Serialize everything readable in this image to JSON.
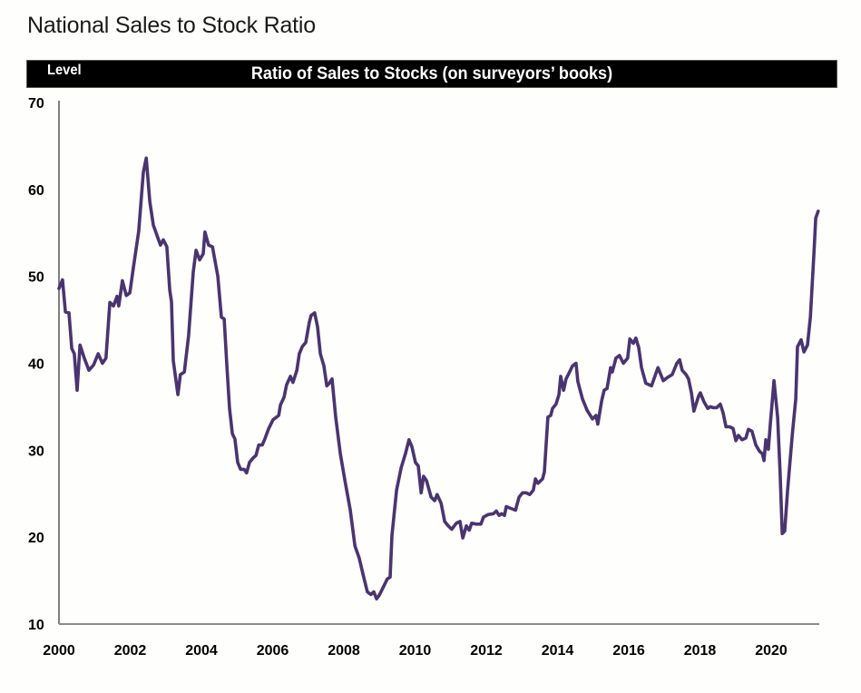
{
  "page": {
    "title": "National Sales to Stock Ratio"
  },
  "header": {
    "left_label": "Level",
    "title": "Ratio of Sales to Stocks (on surveyors’ books)"
  },
  "colors": {
    "line": "#4a3470",
    "axis": "#8c8c8c",
    "header_bg": "#000000",
    "header_text": "#ffffff"
  },
  "chart_data": {
    "type": "line",
    "title": "Ratio of Sales to Stocks (on surveyors’ books)",
    "xlabel": "",
    "ylabel": "Level",
    "xlim": [
      2000,
      2021.35
    ],
    "ylim": [
      10,
      70
    ],
    "grid": false,
    "legend": "none",
    "x_ticks": [
      2000,
      2002,
      2004,
      2006,
      2008,
      2010,
      2012,
      2014,
      2016,
      2018,
      2020
    ],
    "x_tick_labels": [
      "2000",
      "2002",
      "2004",
      "2006",
      "2008",
      "2010",
      "2012",
      "2014",
      "2016",
      "2018",
      "2020"
    ],
    "y_ticks": [
      10,
      20,
      30,
      40,
      50,
      60,
      70
    ],
    "y_tick_labels": [
      "10",
      "20",
      "30",
      "40",
      "50",
      "60",
      "70"
    ],
    "series": [
      {
        "name": "Ratio of Sales to Stocks",
        "points": [
          [
            2000.0,
            48.6
          ],
          [
            2000.1,
            49.6
          ],
          [
            2000.18,
            45.9
          ],
          [
            2000.28,
            45.8
          ],
          [
            2000.36,
            41.7
          ],
          [
            2000.43,
            41.1
          ],
          [
            2000.51,
            36.9
          ],
          [
            2000.59,
            42.1
          ],
          [
            2000.71,
            40.6
          ],
          [
            2000.84,
            39.2
          ],
          [
            2000.97,
            39.8
          ],
          [
            2001.1,
            41.1
          ],
          [
            2001.22,
            40.0
          ],
          [
            2001.32,
            40.6
          ],
          [
            2001.43,
            47.0
          ],
          [
            2001.53,
            46.6
          ],
          [
            2001.63,
            47.7
          ],
          [
            2001.68,
            46.6
          ],
          [
            2001.78,
            49.5
          ],
          [
            2001.89,
            47.8
          ],
          [
            2001.99,
            48.1
          ],
          [
            2002.09,
            51.0
          ],
          [
            2002.24,
            55.2
          ],
          [
            2002.37,
            62.0
          ],
          [
            2002.45,
            63.6
          ],
          [
            2002.55,
            58.6
          ],
          [
            2002.65,
            55.9
          ],
          [
            2002.78,
            54.4
          ],
          [
            2002.85,
            53.6
          ],
          [
            2002.93,
            54.2
          ],
          [
            2003.03,
            53.4
          ],
          [
            2003.11,
            48.4
          ],
          [
            2003.16,
            47.1
          ],
          [
            2003.21,
            40.3
          ],
          [
            2003.34,
            36.4
          ],
          [
            2003.41,
            38.7
          ],
          [
            2003.52,
            39.0
          ],
          [
            2003.64,
            43.2
          ],
          [
            2003.77,
            50.5
          ],
          [
            2003.85,
            53.0
          ],
          [
            2003.95,
            51.9
          ],
          [
            2004.05,
            52.6
          ],
          [
            2004.1,
            55.1
          ],
          [
            2004.2,
            53.6
          ],
          [
            2004.31,
            53.4
          ],
          [
            2004.46,
            50.0
          ],
          [
            2004.56,
            45.3
          ],
          [
            2004.64,
            45.1
          ],
          [
            2004.71,
            40.0
          ],
          [
            2004.79,
            34.8
          ],
          [
            2004.87,
            31.9
          ],
          [
            2004.94,
            31.3
          ],
          [
            2005.02,
            28.6
          ],
          [
            2005.1,
            27.8
          ],
          [
            2005.2,
            27.8
          ],
          [
            2005.27,
            27.4
          ],
          [
            2005.35,
            28.6
          ],
          [
            2005.45,
            29.1
          ],
          [
            2005.53,
            29.4
          ],
          [
            2005.61,
            30.6
          ],
          [
            2005.71,
            30.6
          ],
          [
            2005.78,
            31.3
          ],
          [
            2005.89,
            32.5
          ],
          [
            2006.01,
            33.5
          ],
          [
            2006.17,
            34.0
          ],
          [
            2006.22,
            35.2
          ],
          [
            2006.32,
            36.1
          ],
          [
            2006.39,
            37.5
          ],
          [
            2006.5,
            38.5
          ],
          [
            2006.57,
            37.8
          ],
          [
            2006.68,
            39.2
          ],
          [
            2006.75,
            41.1
          ],
          [
            2006.83,
            41.9
          ],
          [
            2006.93,
            42.4
          ],
          [
            2007.03,
            44.7
          ],
          [
            2007.08,
            45.5
          ],
          [
            2007.18,
            45.8
          ],
          [
            2007.26,
            44.2
          ],
          [
            2007.34,
            41.1
          ],
          [
            2007.44,
            39.7
          ],
          [
            2007.52,
            37.4
          ],
          [
            2007.59,
            37.7
          ],
          [
            2007.67,
            38.2
          ],
          [
            2007.77,
            33.8
          ],
          [
            2007.9,
            29.6
          ],
          [
            2008.03,
            26.5
          ],
          [
            2008.18,
            23.1
          ],
          [
            2008.31,
            19.0
          ],
          [
            2008.43,
            17.6
          ],
          [
            2008.54,
            15.7
          ],
          [
            2008.66,
            13.7
          ],
          [
            2008.76,
            13.4
          ],
          [
            2008.84,
            13.7
          ],
          [
            2008.92,
            12.9
          ],
          [
            2008.99,
            13.3
          ],
          [
            2009.1,
            14.2
          ],
          [
            2009.22,
            15.2
          ],
          [
            2009.3,
            15.4
          ],
          [
            2009.35,
            20.2
          ],
          [
            2009.48,
            25.4
          ],
          [
            2009.61,
            28.0
          ],
          [
            2009.73,
            29.6
          ],
          [
            2009.83,
            31.2
          ],
          [
            2009.91,
            30.4
          ],
          [
            2010.01,
            28.6
          ],
          [
            2010.09,
            28.2
          ],
          [
            2010.17,
            25.1
          ],
          [
            2010.24,
            27.0
          ],
          [
            2010.32,
            26.5
          ],
          [
            2010.45,
            24.6
          ],
          [
            2010.55,
            24.2
          ],
          [
            2010.62,
            24.9
          ],
          [
            2010.73,
            23.9
          ],
          [
            2010.83,
            21.8
          ],
          [
            2010.93,
            21.3
          ],
          [
            2011.03,
            20.9
          ],
          [
            2011.16,
            21.6
          ],
          [
            2011.26,
            21.8
          ],
          [
            2011.34,
            19.9
          ],
          [
            2011.44,
            21.3
          ],
          [
            2011.52,
            20.8
          ],
          [
            2011.59,
            21.6
          ],
          [
            2011.72,
            21.5
          ],
          [
            2011.85,
            21.5
          ],
          [
            2011.92,
            22.3
          ],
          [
            2012.05,
            22.6
          ],
          [
            2012.2,
            22.7
          ],
          [
            2012.28,
            23.0
          ],
          [
            2012.36,
            22.5
          ],
          [
            2012.43,
            22.7
          ],
          [
            2012.51,
            22.5
          ],
          [
            2012.56,
            23.5
          ],
          [
            2012.69,
            23.3
          ],
          [
            2012.82,
            23.1
          ],
          [
            2012.92,
            24.6
          ],
          [
            2013.02,
            25.1
          ],
          [
            2013.12,
            25.1
          ],
          [
            2013.22,
            24.9
          ],
          [
            2013.32,
            25.4
          ],
          [
            2013.38,
            26.7
          ],
          [
            2013.45,
            26.2
          ],
          [
            2013.58,
            26.7
          ],
          [
            2013.63,
            27.5
          ],
          [
            2013.73,
            33.8
          ],
          [
            2013.81,
            34.0
          ],
          [
            2013.86,
            34.8
          ],
          [
            2013.96,
            35.3
          ],
          [
            2014.04,
            36.4
          ],
          [
            2014.09,
            38.5
          ],
          [
            2014.17,
            36.9
          ],
          [
            2014.24,
            38.2
          ],
          [
            2014.34,
            39.0
          ],
          [
            2014.42,
            39.7
          ],
          [
            2014.52,
            40.0
          ],
          [
            2014.57,
            37.9
          ],
          [
            2014.7,
            35.9
          ],
          [
            2014.83,
            34.6
          ],
          [
            2014.98,
            33.6
          ],
          [
            2015.08,
            34.0
          ],
          [
            2015.13,
            33.0
          ],
          [
            2015.24,
            35.7
          ],
          [
            2015.31,
            36.9
          ],
          [
            2015.39,
            37.1
          ],
          [
            2015.49,
            39.5
          ],
          [
            2015.54,
            39.0
          ],
          [
            2015.64,
            40.6
          ],
          [
            2015.74,
            40.9
          ],
          [
            2015.85,
            40.0
          ],
          [
            2015.97,
            40.6
          ],
          [
            2016.03,
            42.8
          ],
          [
            2016.13,
            42.3
          ],
          [
            2016.2,
            42.9
          ],
          [
            2016.28,
            41.8
          ],
          [
            2016.36,
            39.5
          ],
          [
            2016.48,
            37.7
          ],
          [
            2016.64,
            37.4
          ],
          [
            2016.82,
            39.5
          ],
          [
            2016.97,
            38.0
          ],
          [
            2017.1,
            38.4
          ],
          [
            2017.22,
            38.7
          ],
          [
            2017.35,
            40.0
          ],
          [
            2017.43,
            40.4
          ],
          [
            2017.5,
            39.2
          ],
          [
            2017.61,
            38.7
          ],
          [
            2017.68,
            38.2
          ],
          [
            2017.76,
            36.6
          ],
          [
            2017.83,
            34.5
          ],
          [
            2017.96,
            36.2
          ],
          [
            2018.01,
            36.6
          ],
          [
            2018.11,
            35.6
          ],
          [
            2018.22,
            34.8
          ],
          [
            2018.29,
            35.0
          ],
          [
            2018.37,
            34.9
          ],
          [
            2018.47,
            34.9
          ],
          [
            2018.57,
            35.3
          ],
          [
            2018.65,
            34.3
          ],
          [
            2018.73,
            32.7
          ],
          [
            2018.83,
            32.7
          ],
          [
            2018.93,
            32.5
          ],
          [
            2019.01,
            31.1
          ],
          [
            2019.08,
            31.7
          ],
          [
            2019.18,
            31.2
          ],
          [
            2019.29,
            31.4
          ],
          [
            2019.36,
            32.4
          ],
          [
            2019.46,
            32.2
          ],
          [
            2019.57,
            30.6
          ],
          [
            2019.67,
            29.9
          ],
          [
            2019.75,
            29.6
          ],
          [
            2019.8,
            28.8
          ],
          [
            2019.85,
            31.2
          ],
          [
            2019.92,
            30.1
          ],
          [
            2019.97,
            32.7
          ],
          [
            2020.08,
            38.0
          ],
          [
            2020.18,
            33.8
          ],
          [
            2020.25,
            27.5
          ],
          [
            2020.31,
            20.4
          ],
          [
            2020.38,
            20.7
          ],
          [
            2020.46,
            25.4
          ],
          [
            2020.59,
            31.7
          ],
          [
            2020.69,
            35.9
          ],
          [
            2020.74,
            41.9
          ],
          [
            2020.84,
            42.7
          ],
          [
            2020.92,
            41.3
          ],
          [
            2021.02,
            42.1
          ],
          [
            2021.1,
            45.3
          ],
          [
            2021.2,
            52.6
          ],
          [
            2021.25,
            56.7
          ],
          [
            2021.32,
            57.5
          ]
        ]
      }
    ]
  }
}
